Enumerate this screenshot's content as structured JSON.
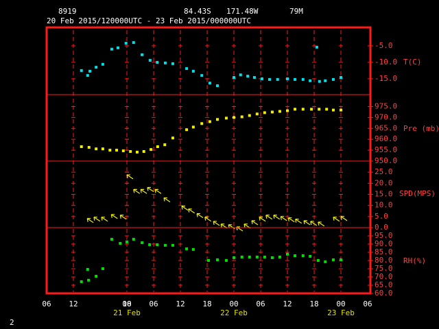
{
  "header": {
    "station": "8919",
    "lat": "84.43S",
    "lon": "171.48W",
    "elev": "79M",
    "period": "20 Feb 2015/120000UTC - 23 Feb 2015/000000UTC"
  },
  "footer": "2",
  "chart_data": {
    "type": "meteogram",
    "xlim": [
      0,
      72
    ],
    "xticks": [
      {
        "value": 0,
        "label": "06"
      },
      {
        "value": 6,
        "label": "12"
      },
      18,
      {
        "value": 18,
        "label": "00"
      },
      {
        "value": 24,
        "label": "06"
      },
      {
        "value": 30,
        "label": "12"
      },
      {
        "value": 36,
        "label": "18"
      },
      {
        "value": 42,
        "label": "00"
      },
      {
        "value": 48,
        "label": "06"
      },
      {
        "value": 54,
        "label": "12"
      },
      {
        "value": 60,
        "label": "18"
      },
      {
        "value": 66,
        "label": "00"
      },
      {
        "value": 72,
        "label": "06"
      }
    ],
    "date_labels": [
      {
        "value": 18,
        "label": "21 Feb"
      },
      {
        "value": 42,
        "label": "22 Feb"
      },
      {
        "value": 66,
        "label": "23 Feb"
      }
    ],
    "panels": [
      {
        "type": "scatter",
        "label": "T(C)",
        "color": "#00e0e8",
        "ylim": [
          -19.8,
          0.6
        ],
        "yticks": [
          {
            "value": -5,
            "label": "-5.0"
          },
          {
            "value": -10,
            "label": "-10.0"
          },
          {
            "value": -15,
            "label": "-15.0"
          }
        ],
        "x": [
          7.8,
          9.2,
          9.7,
          11.1,
          12.6,
          14.6,
          16,
          17.8,
          19.5,
          21.4,
          23.2,
          24.8,
          26.6,
          28.3,
          31.4,
          32.9,
          34.8,
          36.6,
          38.3,
          42,
          43.5,
          45.1,
          46.6,
          48.3,
          50,
          51.8,
          54,
          55.7,
          57.5,
          59.1,
          60.6,
          61.2,
          62.5,
          64.3,
          66
        ],
        "values": [
          -12.5,
          -14.0,
          -12.7,
          -11.5,
          -10.6,
          -6.0,
          -5.6,
          -4.2,
          -4.0,
          -7.7,
          -9.4,
          -10.0,
          -10.2,
          -10.4,
          -11.9,
          -12.7,
          -14.0,
          -16.3,
          -17.1,
          -14.6,
          -13.8,
          -14.2,
          -14.6,
          -15.0,
          -15.2,
          -15.2,
          -15.0,
          -15.2,
          -15.2,
          -15.6,
          -5.4,
          -15.8,
          -15.6,
          -15.2,
          -14.6
        ]
      },
      {
        "type": "scatter",
        "label": "Pre (mb)",
        "color": "#f0f000",
        "ylim": [
          950,
          980.5
        ],
        "yticks": [
          {
            "value": 950,
            "label": "950.0"
          },
          {
            "value": 955,
            "label": "955.0"
          },
          {
            "value": 960,
            "label": "960.0"
          },
          {
            "value": 965,
            "label": "965.0"
          },
          {
            "value": 970,
            "label": "970.0"
          },
          {
            "value": 975,
            "label": "975.0"
          }
        ],
        "x": [
          7.8,
          9.5,
          11.1,
          12.6,
          14.2,
          15.7,
          17.2,
          18.8,
          20.3,
          21.8,
          23.4,
          24.9,
          26.5,
          28.3,
          31.4,
          32.9,
          34.8,
          36.6,
          38.3,
          40.3,
          42,
          43.8,
          45.5,
          47.2,
          48.9,
          50.6,
          52.3,
          54,
          55.7,
          57.5,
          59.4,
          61.1,
          62.8,
          64.3,
          66
        ],
        "values": [
          956.6,
          956.3,
          955.6,
          955.6,
          955.0,
          955.0,
          954.7,
          954.4,
          954.1,
          954.4,
          955.3,
          956.6,
          957.5,
          960.6,
          964.4,
          965.6,
          967.2,
          968.1,
          969.1,
          969.7,
          970.0,
          970.3,
          970.9,
          971.6,
          972.2,
          972.5,
          972.8,
          973.1,
          973.8,
          973.8,
          973.8,
          973.8,
          973.8,
          973.4,
          973.4
        ]
      },
      {
        "type": "arrows",
        "label": "SPD(MPS)",
        "color": "#f0f000",
        "ylim": [
          0,
          30
        ],
        "yticks": [
          {
            "value": 0,
            "label": "0.0"
          },
          {
            "value": 5,
            "label": "5.0"
          },
          {
            "value": 10,
            "label": "10.0"
          },
          {
            "value": 15,
            "label": "15.0"
          },
          {
            "value": 20,
            "label": "20.0"
          },
          {
            "value": 25,
            "label": "25.0"
          }
        ],
        "x": [
          9.1,
          10.6,
          12.3,
          14.5,
          16.5,
          18,
          19.5,
          21.1,
          22.6,
          24.3,
          26.3,
          30.3,
          31.8,
          33.7,
          35.5,
          37.4,
          39.1,
          40.8,
          42.6,
          44.3,
          46,
          47.7,
          49.2,
          50.9,
          52.5,
          54.2,
          55.8,
          57.7,
          59.2,
          60.9,
          64.3,
          66
        ],
        "values": [
          4.1,
          4.7,
          4.7,
          5.9,
          5.6,
          23.8,
          17.2,
          17.2,
          18.1,
          17.2,
          13.4,
          9.7,
          8.4,
          6.3,
          4.7,
          2.8,
          1.6,
          1.3,
          0.3,
          1.6,
          3.1,
          4.7,
          5.6,
          5.6,
          5.0,
          4.4,
          3.8,
          3.1,
          2.8,
          2.5,
          4.7,
          5.0
        ]
      },
      {
        "type": "scatter",
        "label": "RH(%)",
        "color": "#00e000",
        "ylim": [
          60,
          100
        ],
        "yticks": [
          {
            "value": 60,
            "label": "60.0"
          },
          {
            "value": 65,
            "label": "65.0"
          },
          {
            "value": 70,
            "label": "70.0"
          },
          {
            "value": 75,
            "label": "75.0"
          },
          {
            "value": 80,
            "label": "80.0"
          },
          {
            "value": 85,
            "label": "85.0"
          },
          {
            "value": 90,
            "label": "90.0"
          },
          {
            "value": 95,
            "label": "95.0"
          }
        ],
        "x": [
          7.8,
          9.2,
          9.4,
          11.1,
          12.6,
          14.6,
          16.5,
          18,
          19.5,
          21.4,
          23.1,
          24.8,
          26.6,
          28.3,
          31.4,
          32.9,
          36.3,
          38.3,
          40.3,
          42,
          43.8,
          45.5,
          47.2,
          48.9,
          50.6,
          52.3,
          54,
          55.7,
          57.5,
          59.1,
          60.9,
          62.5,
          64.3,
          66
        ],
        "values": [
          67.1,
          74.6,
          68.0,
          70.4,
          75.0,
          92.9,
          90.4,
          91.3,
          92.9,
          90.8,
          89.6,
          89.6,
          89.2,
          89.2,
          87.1,
          86.7,
          80.0,
          80.4,
          80.0,
          81.7,
          82.1,
          82.1,
          82.1,
          82.1,
          81.7,
          82.1,
          83.8,
          82.9,
          82.9,
          82.5,
          80.0,
          79.2,
          80.4,
          80.4
        ]
      }
    ]
  }
}
